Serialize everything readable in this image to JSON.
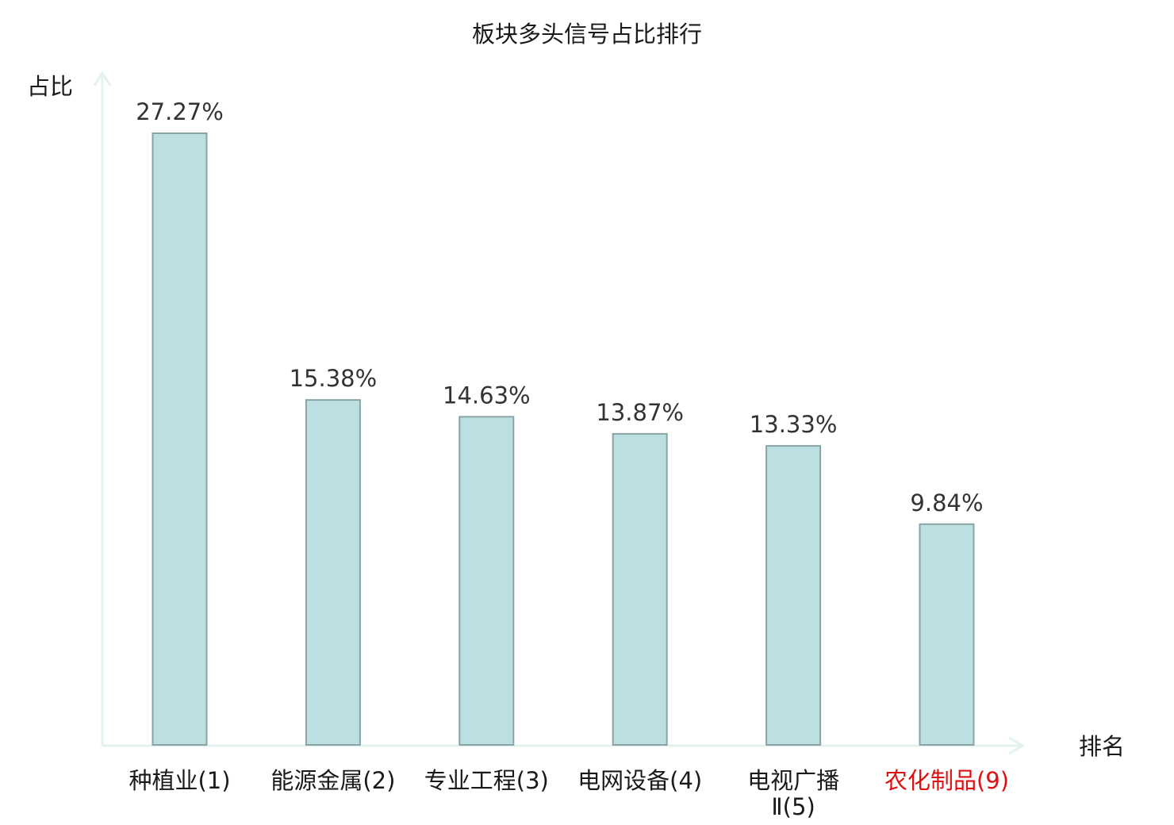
{
  "chart_data": {
    "type": "bar",
    "title": "板块多头信号占比排行",
    "ylabel": "占比",
    "xlabel": "排名",
    "categories": [
      [
        "种植业(1)"
      ],
      [
        "能源金属(2)"
      ],
      [
        "专业工程(3)"
      ],
      [
        "电网设备(4)"
      ],
      [
        "电视广播",
        "Ⅱ(5)"
      ],
      [
        "农化制品(9)"
      ]
    ],
    "values": [
      27.27,
      15.38,
      14.63,
      13.87,
      13.33,
      9.84
    ],
    "value_labels": [
      "27.27%",
      "15.38%",
      "14.63%",
      "13.87%",
      "13.33%",
      "9.84%"
    ],
    "highlight_index": 5,
    "ylim": [
      0,
      27.27
    ],
    "grid": false,
    "legend": "none"
  },
  "colors": {
    "bar_fill": "#bce0e2",
    "bar_stroke": "#8aa3a5",
    "axis": "#e3f2ef",
    "text": "#1a1a1a",
    "value_text": "#333333",
    "highlight": "#dd1111"
  }
}
